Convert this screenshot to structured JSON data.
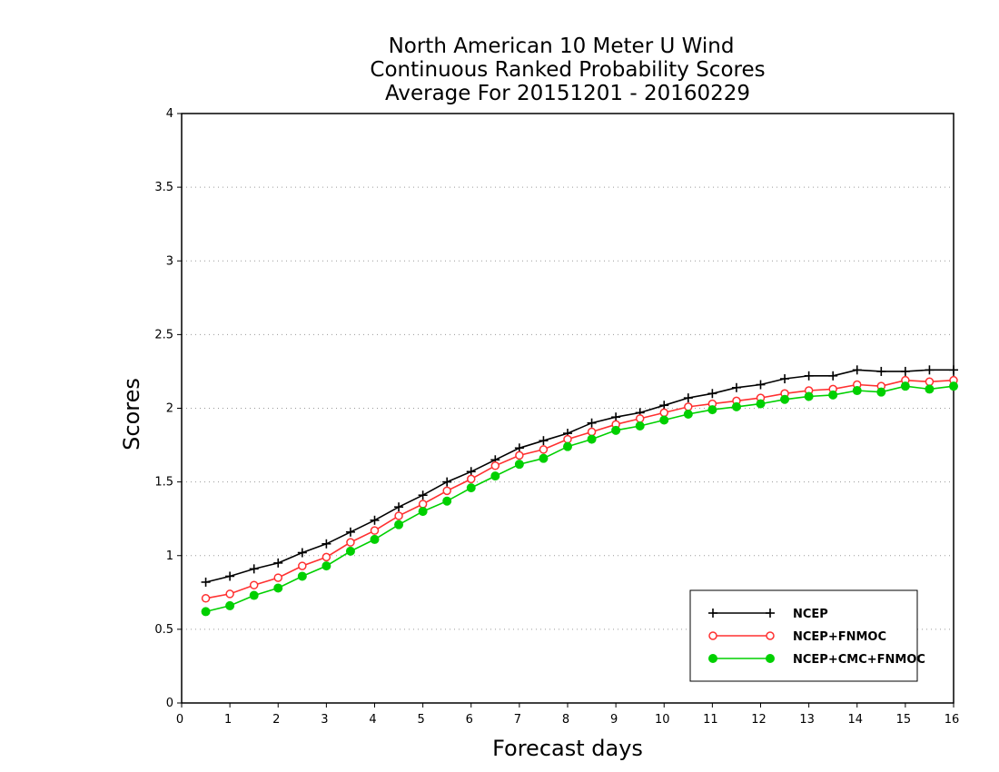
{
  "chart_data": {
    "type": "line",
    "title": [
      "North American 10 Meter U Wind",
      "Continuous Ranked Probability Scores",
      "Average For 20151201 - 20160229"
    ],
    "xlabel": "Forecast days",
    "ylabel": "Scores",
    "xlim": [
      0,
      16
    ],
    "ylim": [
      0,
      4
    ],
    "xticks": [
      "0",
      "1",
      "2",
      "3",
      "4",
      "5",
      "6",
      "7",
      "8",
      "9",
      "10",
      "11",
      "12",
      "13",
      "14",
      "15",
      "16"
    ],
    "yticks": [
      "0",
      "0.5",
      "1",
      "1.5",
      "2",
      "2.5",
      "3",
      "3.5",
      "4"
    ],
    "grid": "horizontal-dotted",
    "legend_position": "bottom-right",
    "x": [
      0.5,
      1,
      1.5,
      2,
      2.5,
      3,
      3.5,
      4,
      4.5,
      5,
      5.5,
      6,
      6.5,
      7,
      7.5,
      8,
      8.5,
      9,
      9.5,
      10,
      10.5,
      11,
      11.5,
      12,
      12.5,
      13,
      13.5,
      14,
      14.5,
      15,
      15.5,
      16
    ],
    "series": [
      {
        "name": "NCEP",
        "color": "#000000",
        "marker": "plus",
        "values": [
          0.82,
          0.86,
          0.91,
          0.95,
          1.02,
          1.08,
          1.16,
          1.24,
          1.33,
          1.41,
          1.5,
          1.57,
          1.65,
          1.73,
          1.78,
          1.83,
          1.9,
          1.94,
          1.97,
          2.02,
          2.07,
          2.1,
          2.14,
          2.16,
          2.2,
          2.22,
          2.22,
          2.26,
          2.25,
          2.25,
          2.26,
          2.26
        ]
      },
      {
        "name": "NCEP+FNMOC",
        "color": "#ff3030",
        "marker": "open-circle",
        "values": [
          0.71,
          0.74,
          0.8,
          0.85,
          0.93,
          0.99,
          1.09,
          1.17,
          1.27,
          1.35,
          1.44,
          1.52,
          1.61,
          1.68,
          1.72,
          1.79,
          1.84,
          1.89,
          1.93,
          1.97,
          2.01,
          2.03,
          2.05,
          2.07,
          2.1,
          2.12,
          2.13,
          2.16,
          2.15,
          2.19,
          2.18,
          2.19
        ]
      },
      {
        "name": "NCEP+CMC+FNMOC",
        "color": "#00d000",
        "marker": "filled-circle",
        "values": [
          0.62,
          0.66,
          0.73,
          0.78,
          0.86,
          0.93,
          1.03,
          1.11,
          1.21,
          1.3,
          1.37,
          1.46,
          1.54,
          1.62,
          1.66,
          1.74,
          1.79,
          1.85,
          1.88,
          1.92,
          1.96,
          1.99,
          2.01,
          2.03,
          2.06,
          2.08,
          2.09,
          2.12,
          2.11,
          2.15,
          2.13,
          2.15
        ]
      }
    ]
  }
}
